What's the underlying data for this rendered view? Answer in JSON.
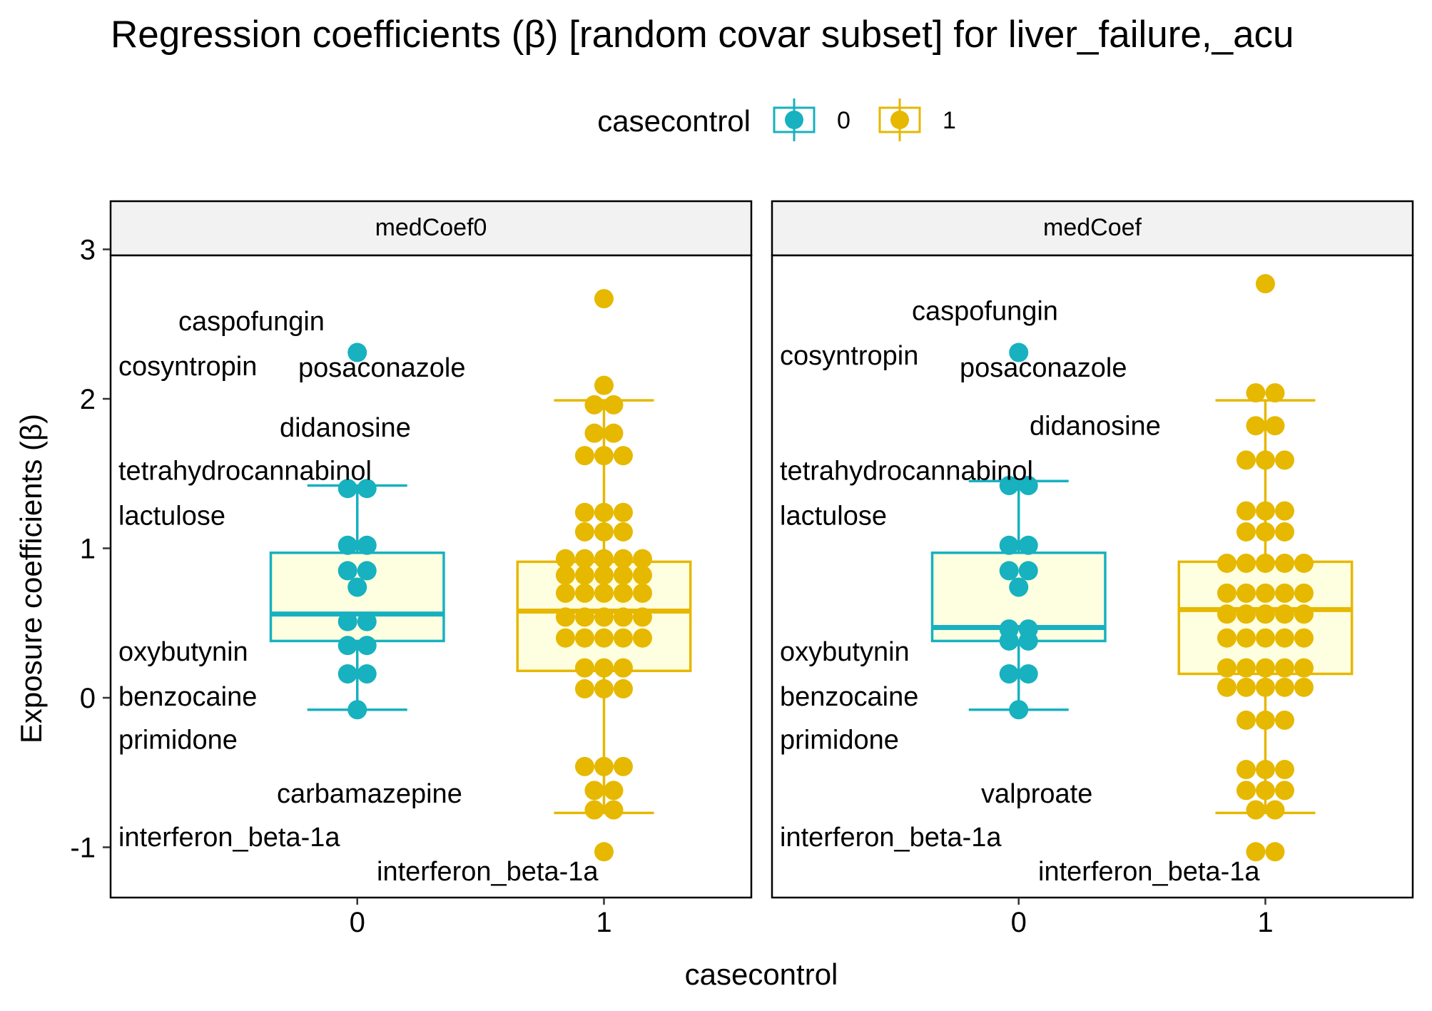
{
  "chart_data": {
    "type": "box",
    "title": "Regression coefficients (β) [random covar subset]  for liver_failure,_acu",
    "xlabel": "casecontrol",
    "ylabel": "Exposure coefficients (β)",
    "ylim": [
      -1.3,
      3.3
    ],
    "yticks": [
      -1,
      0,
      1,
      2,
      3
    ],
    "x_categories": [
      "0",
      "1"
    ],
    "legend": {
      "title": "casecontrol",
      "position": "top",
      "entries": [
        {
          "label": "0",
          "color": "#17b1bf"
        },
        {
          "label": "1",
          "color": "#e6b800"
        }
      ]
    },
    "box_fill": "#fefee0",
    "panels": [
      {
        "strip": "medCoef0",
        "boxes": [
          {
            "group": "0",
            "lower_whisker": -0.08,
            "q1": 0.38,
            "median": 0.56,
            "q3": 0.97,
            "upper_whisker": 1.42
          },
          {
            "group": "1",
            "lower_whisker": -0.77,
            "q1": 0.18,
            "median": 0.58,
            "q3": 0.91,
            "upper_whisker": 1.99
          }
        ],
        "points": [
          {
            "group": "0",
            "values": [
              2.31,
              1.4,
              1.02,
              0.85,
              0.74,
              0.51,
              0.35,
              0.16,
              -0.08
            ]
          },
          {
            "group": "1",
            "values": [
              2.67,
              2.09,
              1.96,
              1.77,
              1.62,
              1.24,
              1.11,
              0.93,
              0.82,
              0.7,
              0.54,
              0.4,
              0.2,
              0.06,
              -0.46,
              -0.62,
              -0.75,
              -1.03
            ]
          }
        ],
        "labels": [
          {
            "text": "caspofungin",
            "y": 2.52
          },
          {
            "text": "cosyntropin",
            "y": 2.22
          },
          {
            "text": "posaconazole",
            "y": 2.21
          },
          {
            "text": "didanosine",
            "y": 1.81
          },
          {
            "text": "tetrahydrocannabinol",
            "y": 1.52
          },
          {
            "text": "lactulose",
            "y": 1.22
          },
          {
            "text": "oxybutynin",
            "y": 0.31
          },
          {
            "text": "benzocaine",
            "y": 0.01
          },
          {
            "text": "primidone",
            "y": -0.28
          },
          {
            "text": "carbamazepine",
            "y": -0.64
          },
          {
            "text": "interferon_beta-1a",
            "y": -0.93
          },
          {
            "text": "interferon_beta-1a",
            "y": -1.16
          }
        ]
      },
      {
        "strip": "medCoef",
        "boxes": [
          {
            "group": "0",
            "lower_whisker": -0.08,
            "q1": 0.38,
            "median": 0.47,
            "q3": 0.97,
            "upper_whisker": 1.45
          },
          {
            "group": "1",
            "lower_whisker": -0.77,
            "q1": 0.16,
            "median": 0.59,
            "q3": 0.91,
            "upper_whisker": 1.99
          }
        ],
        "points": [
          {
            "group": "0",
            "values": [
              2.31,
              1.42,
              1.02,
              0.85,
              0.74,
              0.46,
              0.38,
              0.16,
              -0.08
            ]
          },
          {
            "group": "1",
            "values": [
              2.77,
              2.04,
              1.82,
              1.59,
              1.25,
              1.11,
              0.9,
              0.7,
              0.56,
              0.4,
              0.2,
              0.07,
              -0.15,
              -0.48,
              -0.62,
              -0.75,
              -1.03
            ]
          }
        ],
        "labels": [
          {
            "text": "caspofungin",
            "y": 2.59
          },
          {
            "text": "cosyntropin",
            "y": 2.29
          },
          {
            "text": "posaconazole",
            "y": 2.21
          },
          {
            "text": "didanosine",
            "y": 1.82
          },
          {
            "text": "tetrahydrocannabinol",
            "y": 1.52
          },
          {
            "text": "lactulose",
            "y": 1.22
          },
          {
            "text": "oxybutynin",
            "y": 0.31
          },
          {
            "text": "benzocaine",
            "y": 0.01
          },
          {
            "text": "primidone",
            "y": -0.28
          },
          {
            "text": "valproate",
            "y": -0.64
          },
          {
            "text": "interferon_beta-1a",
            "y": -0.93
          },
          {
            "text": "interferon_beta-1a",
            "y": -1.16
          }
        ]
      }
    ]
  }
}
